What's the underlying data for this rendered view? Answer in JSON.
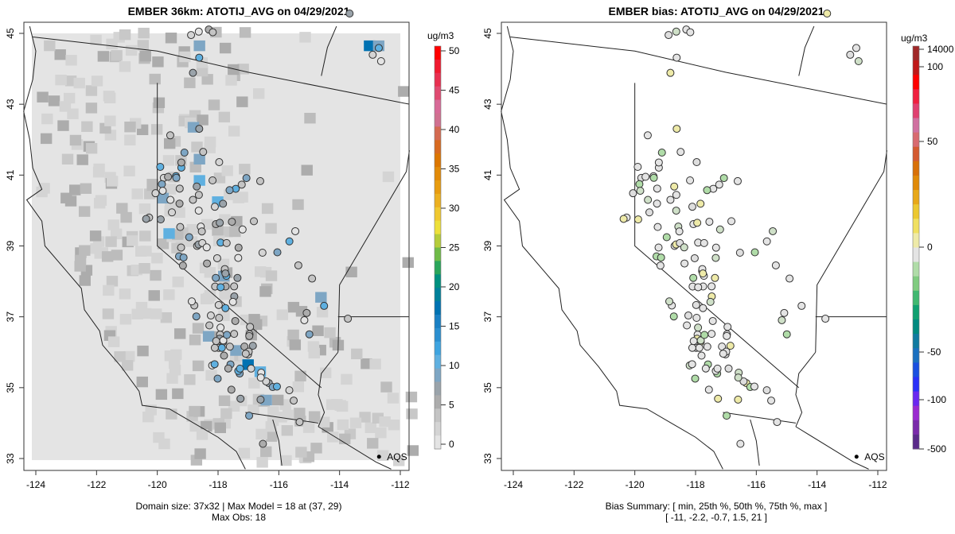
{
  "panels": [
    {
      "title": "EMBER 36km: ATOTIJ_AVG on 04/29/2021",
      "footer_line1": "Domain size: 37x32 | Max Model = 18 at (37, 29)",
      "footer_line2": "Max Obs: 18",
      "colorbar_unit": "ug/m3",
      "colorbar_ticks": [
        "0",
        "5",
        "10",
        "15",
        "20",
        "25",
        "30",
        "35",
        "40",
        "45",
        "50"
      ],
      "colorbar_colors": [
        "#e4e4e4",
        "#d4d4d4",
        "#c4c4c4",
        "#acacac",
        "#9aa3aa",
        "#7ea6c4",
        "#5fb0e0",
        "#3ea4e0",
        "#2b8fd0",
        "#1a80c4",
        "#0072b2",
        "#00809a",
        "#00907e",
        "#2aa55a",
        "#6fbb48",
        "#b5cc3a",
        "#ede03a",
        "#f0c830",
        "#ecb020",
        "#e89c10",
        "#e28a08",
        "#dc7600",
        "#d86a20",
        "#d46a50",
        "#d07090",
        "#d86a98",
        "#e04a70",
        "#e83050",
        "#f01a30",
        "#ff0000"
      ],
      "legend_label": "AQS"
    },
    {
      "title": "EMBER bias: ATOTIJ_AVG on 04/29/2021",
      "footer_line1": "Bias Summary: [ min, 25th %, 50th %, 75th %, max ]",
      "footer_line2": "[ -11,  -2.2,  -0.7,  1.5,  21 ]",
      "colorbar_unit": "ug/m3",
      "colorbar_ticks": [
        "-500",
        "-100",
        "-50",
        "0",
        "50",
        "100",
        "14000"
      ],
      "colorbar_colors": [
        "#5a2a8a",
        "#7a2aaa",
        "#9a2ad0",
        "#6a28f0",
        "#2a30f8",
        "#1a50e0",
        "#1a70c0",
        "#107aa0",
        "#008a80",
        "#10a070",
        "#40b870",
        "#80cc80",
        "#b0dca8",
        "#e4e4e4",
        "#eeeaa8",
        "#f0e060",
        "#ecc830",
        "#e8a818",
        "#e08a08",
        "#d87008",
        "#d45a30",
        "#d86a70",
        "#d070a0",
        "#e04070",
        "#f02040",
        "#ff0000",
        "#c01818",
        "#a02828"
      ],
      "legend_label": "AQS",
      "bias_summary": {
        "min": -11,
        "p25": -2.2,
        "p50": -0.7,
        "p75": 1.5,
        "max": 21
      }
    }
  ],
  "axes": {
    "x_ticks": [
      "-124",
      "-122",
      "-120",
      "-118",
      "-116",
      "-114",
      "-112"
    ],
    "y_ticks": [
      "33",
      "35",
      "37",
      "39",
      "41",
      "43",
      "45"
    ],
    "xlim": [
      -124.3,
      -111.7
    ],
    "ylim": [
      32.8,
      45.2
    ]
  },
  "chart_data": [
    {
      "type": "heatmap",
      "title": "EMBER 36km: ATOTIJ_AVG on 04/29/2021",
      "xlabel": "",
      "ylabel": "",
      "units": "ug/m3",
      "color_range": [
        0,
        50
      ],
      "domain_size": "37x32",
      "max_model": 18,
      "max_model_at": [
        37,
        29
      ],
      "max_obs": 18,
      "overlay": "AQS site observations (circles)"
    },
    {
      "type": "scatter",
      "title": "EMBER bias: ATOTIJ_AVG on 04/29/2021",
      "units": "ug/m3",
      "bias_quantiles": {
        "min": -11,
        "p25": -2.2,
        "p50": -0.7,
        "p75": 1.5,
        "max": 21
      },
      "overlay": "AQS site bias (circles)"
    }
  ]
}
